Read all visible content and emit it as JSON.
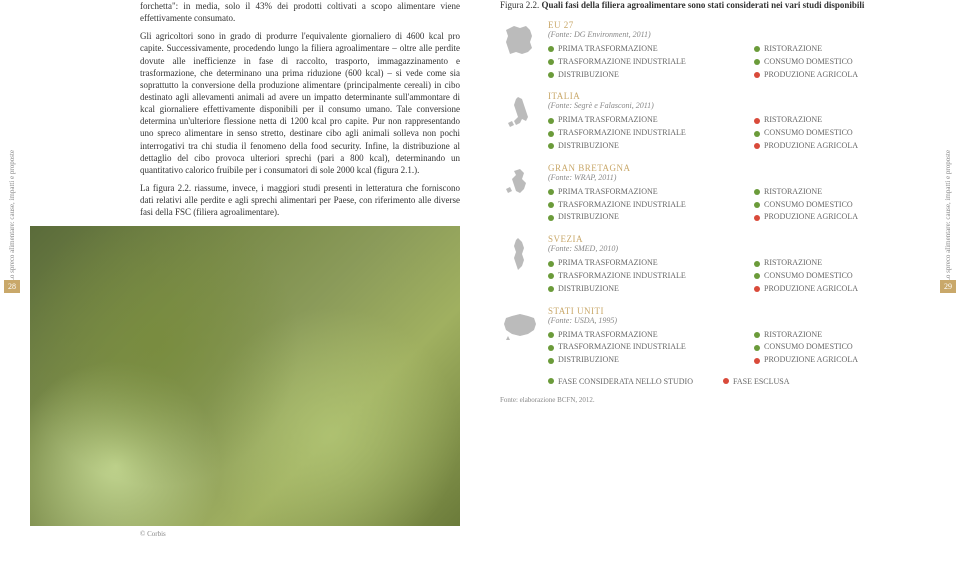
{
  "sidetext": "Lo spreco alimentare: cause, impatti e proposte",
  "pagenum_left": "28",
  "pagenum_right": "29",
  "para1": "forchetta\": in media, solo il 43% dei prodotti coltivati a scopo alimentare viene effettivamente consumato.",
  "para2": "Gli agricoltori sono in grado di produrre l'equivalente giornaliero di 4600 kcal pro capite. Successivamente, procedendo lungo la filiera agroalimentare – oltre alle perdite dovute alle inefficienze in fase di raccolto, trasporto, immagazzinamento e trasformazione, che determinano una prima riduzione (600 kcal) – si vede come sia soprattutto la conversione della produzione alimentare (principalmente cereali) in cibo destinato agli allevamenti animali ad avere un impatto determinante sull'ammontare di kcal giornaliere effettivamente disponibili per il consumo umano. Tale conversione determina un'ulteriore flessione netta di 1200 kcal pro capite. Pur non rappresentando uno spreco alimentare in senso stretto, destinare cibo agli animali solleva non pochi interrogativi tra chi studia il fenomeno della food security. Infine, la distribuzione al dettaglio del cibo provoca ulteriori sprechi (pari a 800 kcal), determinando un quantitativo calorico fruibile per i consumatori di sole 2000 kcal (figura 2.1.).",
  "para3": "La figura 2.2. riassume, invece, i maggiori studi presenti in letteratura che forniscono dati relativi alle perdite e agli sprechi alimentari per Paese, con riferimento alle diverse fasi della FSC (filiera agroalimentare).",
  "photo_credit": "© Corbis",
  "fig_label": "Figura 2.2.",
  "fig_title": "Quali fasi della filiera agroalimentare sono stati considerati nei vari studi disponibili",
  "colors": {
    "included": "#6b9b3a",
    "excluded": "#d94a3a",
    "accent": "#c9a86a",
    "map": "#bbbbbb"
  },
  "phases_left": [
    "PRIMA TRASFORMAZIONE",
    "TRASFORMAZIONE INDUSTRIALE",
    "DISTRIBUZIONE"
  ],
  "phases_right": [
    "RISTORAZIONE",
    "CONSUMO DOMESTICO",
    "PRODUZIONE AGRICOLA"
  ],
  "regions": [
    {
      "name": "EU 27",
      "source": "(Fonte: DG Environment, 2011)",
      "left": [
        "inc",
        "inc",
        "inc"
      ],
      "right": [
        "inc",
        "inc",
        "exc"
      ],
      "shape": "eu"
    },
    {
      "name": "ITALIA",
      "source": "(Fonte: Segrè e Falasconi, 2011)",
      "left": [
        "inc",
        "inc",
        "inc"
      ],
      "right": [
        "exc",
        "inc",
        "exc"
      ],
      "shape": "italy"
    },
    {
      "name": "GRAN BRETAGNA",
      "source": "(Fonte: WRAP, 2011)",
      "left": [
        "inc",
        "inc",
        "inc"
      ],
      "right": [
        "inc",
        "inc",
        "exc"
      ],
      "shape": "uk"
    },
    {
      "name": "SVEZIA",
      "source": "(Fonte: SMED, 2010)",
      "left": [
        "inc",
        "inc",
        "inc"
      ],
      "right": [
        "inc",
        "inc",
        "exc"
      ],
      "shape": "sweden"
    },
    {
      "name": "STATI UNITI",
      "source": "(Fonte: USDA, 1995)",
      "left": [
        "inc",
        "inc",
        "inc"
      ],
      "right": [
        "inc",
        "inc",
        "exc"
      ],
      "shape": "usa"
    }
  ],
  "legend_inc": "FASE CONSIDERATA NELLO STUDIO",
  "legend_exc": "FASE ESCLUSA",
  "footnote": "Fonte: elaborazione BCFN, 2012."
}
